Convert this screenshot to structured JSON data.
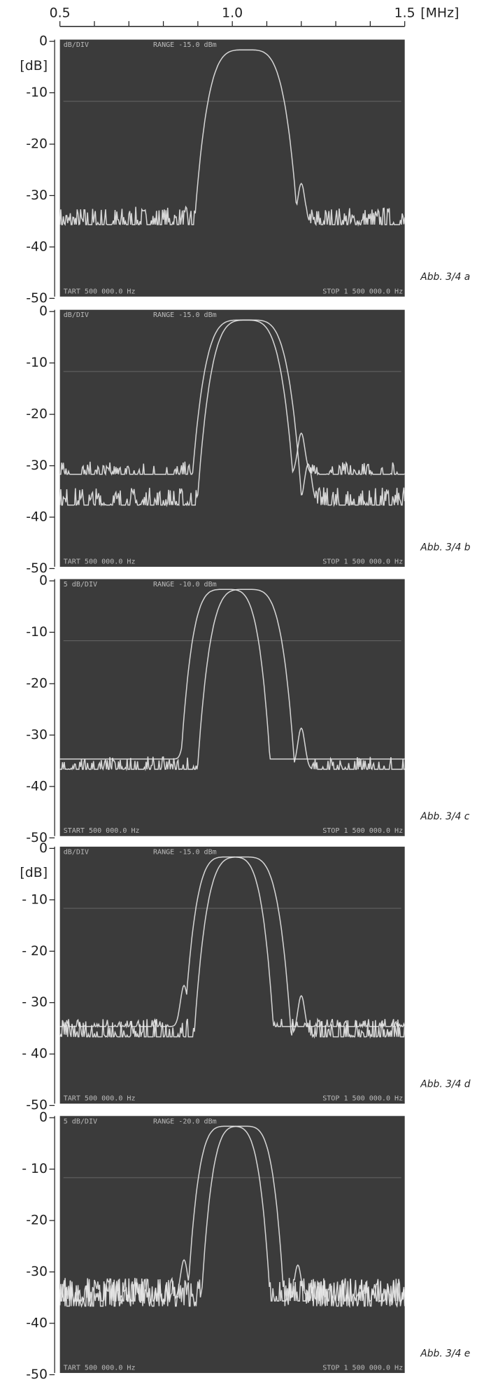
{
  "top_axis": {
    "labels": [
      "0.5",
      "1.0",
      "1.5"
    ],
    "unit": "[MHz]"
  },
  "panels": [
    {
      "y_labels": [
        "0",
        "-10",
        "-20",
        "-30",
        "-40",
        "-50"
      ],
      "unit_label": "[dB]",
      "header": [
        "dB/DIV",
        "RANGE -15.0 dBm"
      ],
      "footer": [
        "TART 500 000.0 Hz",
        "STOP 1 500 000.0 Hz"
      ],
      "caption": "Abb. 3/4 a"
    },
    {
      "y_labels": [
        "0",
        "-10",
        "-20",
        "-30",
        "-40",
        "-50"
      ],
      "header": [
        "dB/DIV",
        "RANGE -15.0 dBm"
      ],
      "footer": [
        "TART 500 000.0 Hz",
        "STOP 1 500 000.0 Hz"
      ],
      "caption": "Abb. 3/4 b"
    },
    {
      "y_labels": [
        "0",
        "-10",
        "-20",
        "-30",
        "-40",
        "-50"
      ],
      "header": [
        "5 dB/DIV",
        "RANGE -10.0 dBm"
      ],
      "footer": [
        "START 500 000.0 Hz",
        "STOP 1 500 000.0 Hz"
      ],
      "caption": "Abb. 3/4 c"
    },
    {
      "y_labels": [
        "0",
        "- 10",
        "- 20",
        "- 30",
        "- 40",
        "-50"
      ],
      "unit_label": "[dB]",
      "header": [
        "dB/DIV",
        "RANGE -15.0 dBm"
      ],
      "footer": [
        "TART 500 000.0 Hz",
        "STOP 1 500 000.0 Hz"
      ],
      "caption": "Abb. 3/4 d"
    },
    {
      "y_labels": [
        "0",
        "- 10",
        "-20",
        "-30",
        "-40",
        "-50"
      ],
      "header": [
        "5 dB/DIV",
        "RANGE -20.0 dBm"
      ],
      "footer": [
        "TART 500 000.0 Hz",
        "STOP 1 500 000.0 Hz"
      ],
      "caption": "Abb. 3/4 e"
    }
  ]
}
